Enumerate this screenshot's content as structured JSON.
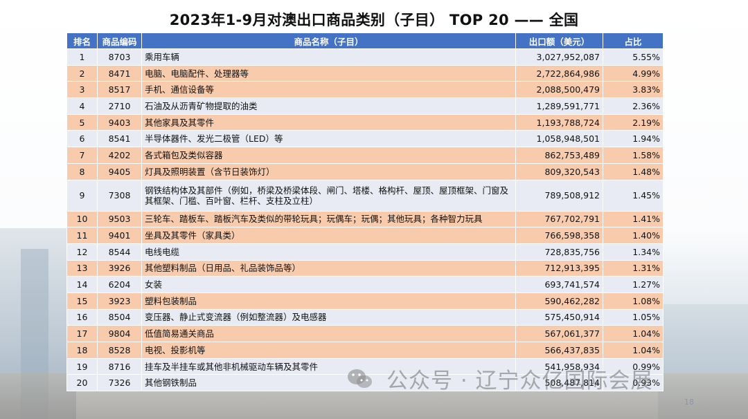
{
  "title": "2023年1-9月对澳出口商品类别（子目） TOP 20 —— 全国",
  "table": {
    "headers": [
      "排名",
      "商品编码",
      "商品名称（子目）",
      "出口额（美元）",
      "占比"
    ],
    "rows": [
      {
        "rank": "1",
        "code": "8703",
        "name": "乘用车辆",
        "amount": "3,027,952,087",
        "share": "5.55%"
      },
      {
        "rank": "2",
        "code": "8471",
        "name": "电脑、电脑配件、处理器等",
        "amount": "2,722,864,986",
        "share": "4.99%"
      },
      {
        "rank": "3",
        "code": "8517",
        "name": "手机、通信设备等",
        "amount": "2,088,500,479",
        "share": "3.83%"
      },
      {
        "rank": "4",
        "code": "2710",
        "name": "石油及从沥青矿物提取的油类",
        "amount": "1,289,591,771",
        "share": "2.36%"
      },
      {
        "rank": "5",
        "code": "9403",
        "name": "其他家具及其零件",
        "amount": "1,193,788,724",
        "share": "2.19%"
      },
      {
        "rank": "6",
        "code": "8541",
        "name": "半导体器件、发光二极管（LED）等",
        "amount": "1,058,948,501",
        "share": "1.94%"
      },
      {
        "rank": "7",
        "code": "4202",
        "name": "各式箱包及类似容器",
        "amount": "862,753,489",
        "share": "1.58%"
      },
      {
        "rank": "8",
        "code": "9405",
        "name": "灯具及照明装置（含节日装饰灯）",
        "amount": "809,320,543",
        "share": "1.48%"
      },
      {
        "rank": "9",
        "code": "7308",
        "name": "钢铁结构体及其部件（例如，桥梁及桥梁体段、闸门、塔楼、格构杆、屋顶、屋顶框架、门窗及其框架、门槛、百叶窗、栏杆、支柱及立柱）",
        "amount": "789,508,912",
        "share": "1.45%"
      },
      {
        "rank": "10",
        "code": "9503",
        "name": "三轮车、踏板车、踏板汽车及类似的带轮玩具；玩偶车；玩偶；其他玩具；各种智力玩具",
        "amount": "767,702,791",
        "share": "1.41%"
      },
      {
        "rank": "11",
        "code": "9401",
        "name": "坐具及其零件（家具类）",
        "amount": "766,598,358",
        "share": "1.40%"
      },
      {
        "rank": "12",
        "code": "8544",
        "name": "电线电缆",
        "amount": "728,835,756",
        "share": "1.34%"
      },
      {
        "rank": "13",
        "code": "3926",
        "name": "其他塑料制品（日用品、礼品装饰品等）",
        "amount": "712,913,395",
        "share": "1.31%"
      },
      {
        "rank": "14",
        "code": "6204",
        "name": "女装",
        "amount": "693,741,574",
        "share": "1.27%"
      },
      {
        "rank": "15",
        "code": "3923",
        "name": "塑料包装制品",
        "amount": "590,462,282",
        "share": "1.08%"
      },
      {
        "rank": "16",
        "code": "8504",
        "name": "变压器、静止式变流器（例如整流器）及电感器",
        "amount": "575,450,914",
        "share": "1.05%"
      },
      {
        "rank": "17",
        "code": "9804",
        "name": "低值简易通关商品",
        "amount": "567,061,377",
        "share": "1.04%"
      },
      {
        "rank": "18",
        "code": "8528",
        "name": "电视、投影机等",
        "amount": "566,437,835",
        "share": "1.04%"
      },
      {
        "rank": "19",
        "code": "8716",
        "name": "挂车及半挂车或其他非机械驱动车辆及其零件",
        "amount": "541,958,934",
        "share": "0.99%"
      },
      {
        "rank": "20",
        "code": "7326",
        "name": "其他钢铁制品",
        "amount": "508,487,814",
        "share": "0.93%"
      }
    ]
  },
  "watermark": {
    "text": "公众号 · 辽宁众亿国际会展",
    "icon": "wechat-icon"
  },
  "page_number": "18",
  "colors": {
    "header": "#4472c4",
    "row_odd": "#e8ebf3",
    "row_even": "#f8cbad"
  }
}
